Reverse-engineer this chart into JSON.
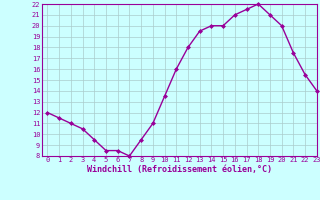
{
  "x": [
    0,
    1,
    2,
    3,
    4,
    5,
    6,
    7,
    8,
    9,
    10,
    11,
    12,
    13,
    14,
    15,
    16,
    17,
    18,
    19,
    20,
    21,
    22,
    23
  ],
  "y": [
    12,
    11.5,
    11,
    10.5,
    9.5,
    8.5,
    8.5,
    8.0,
    9.5,
    11,
    13.5,
    16,
    18,
    19.5,
    20,
    20,
    21,
    21.5,
    22,
    21,
    20,
    17.5,
    15.5,
    14
  ],
  "line_color": "#990099",
  "marker": "D",
  "marker_size": 2,
  "line_width": 1.0,
  "xlabel": "Windchill (Refroidissement éolien,°C)",
  "xlabel_color": "#990099",
  "bg_color": "#ccffff",
  "grid_color": "#aacccc",
  "tick_color": "#990099",
  "spine_color": "#990099",
  "ylim": [
    8,
    22
  ],
  "xlim": [
    -0.5,
    23
  ],
  "yticks": [
    8,
    9,
    10,
    11,
    12,
    13,
    14,
    15,
    16,
    17,
    18,
    19,
    20,
    21,
    22
  ],
  "xticks": [
    0,
    1,
    2,
    3,
    4,
    5,
    6,
    7,
    8,
    9,
    10,
    11,
    12,
    13,
    14,
    15,
    16,
    17,
    18,
    19,
    20,
    21,
    22,
    23
  ],
  "tick_fontsize": 5.0,
  "xlabel_fontsize": 6.0,
  "fig_width": 3.2,
  "fig_height": 2.0,
  "dpi": 100
}
